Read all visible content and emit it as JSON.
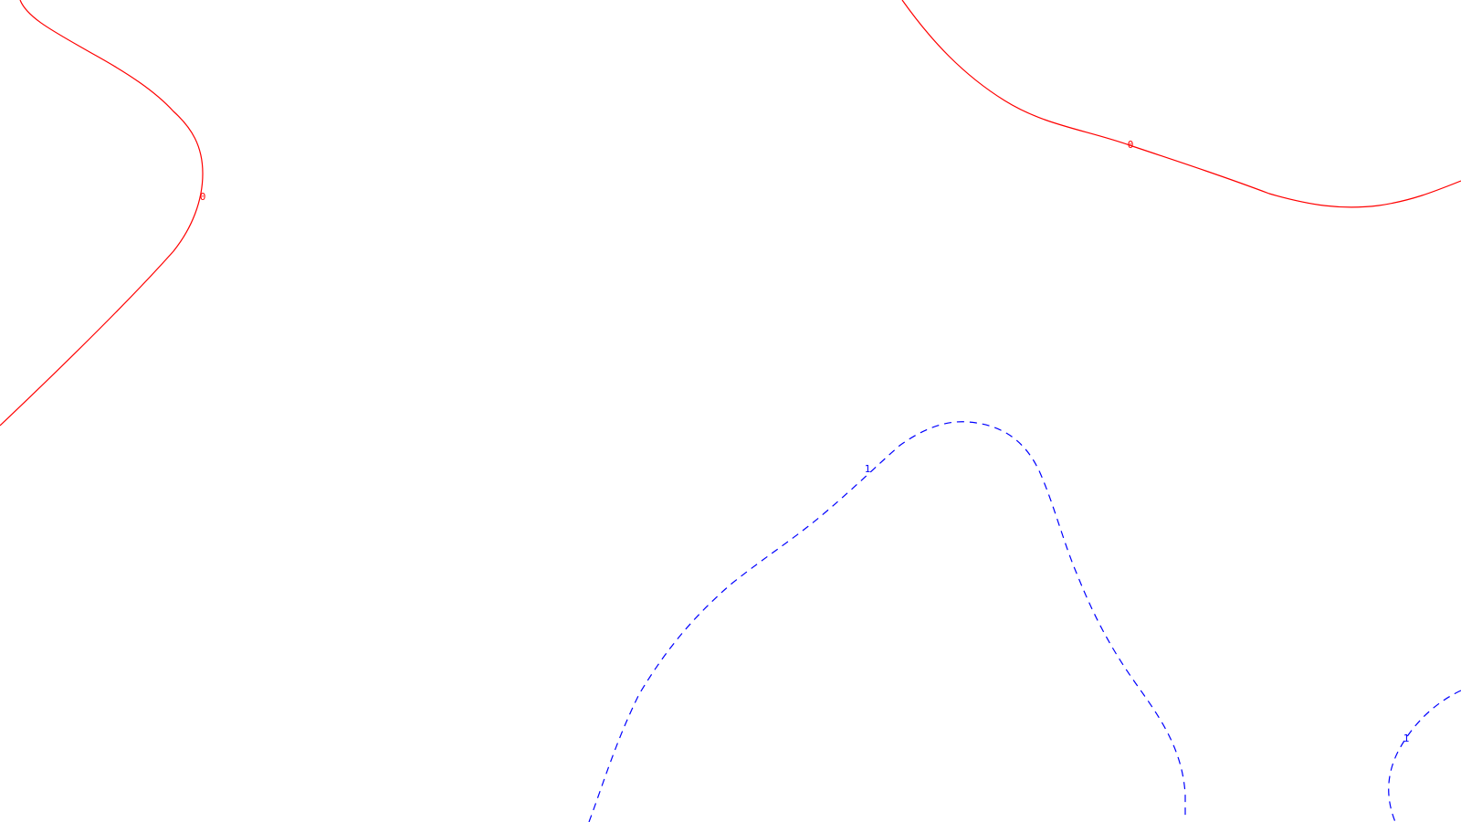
{
  "chart_data": {
    "type": "contour",
    "title": "",
    "xlabel": "",
    "ylabel": "",
    "grid": false,
    "legend": "none",
    "series": [
      {
        "level": "0",
        "color": "#ff0000",
        "dash": "solid",
        "label": "0"
      },
      {
        "level": "1",
        "color": "#0000ff",
        "dash": "dashed",
        "label": "1"
      }
    ]
  }
}
